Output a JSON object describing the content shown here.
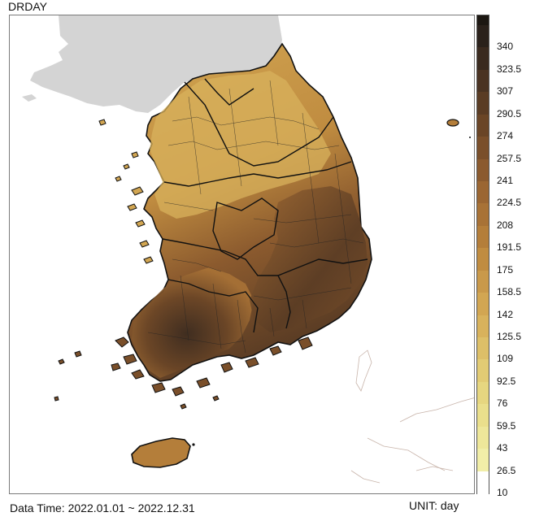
{
  "title": "DRDAY",
  "footer": {
    "data_time": "Data Time: 2022.01.01 ~ 2022.12.31",
    "unit": "UNIT: day"
  },
  "legend": {
    "labels": [
      "340",
      "323.5",
      "307",
      "290.5",
      "274",
      "257.5",
      "241",
      "224.5",
      "208",
      "191.5",
      "175",
      "158.5",
      "142",
      "125.5",
      "109",
      "92.5",
      "76",
      "59.5",
      "43",
      "26.5",
      "10"
    ],
    "colors": [
      "#2a211b",
      "#3a2a1f",
      "#4a3322",
      "#5a3c24",
      "#6a4526",
      "#7a4f2a",
      "#8b5a2e",
      "#9b6632",
      "#a87236",
      "#b47e3a",
      "#c08c40",
      "#c9994a",
      "#d2a652",
      "#d8b25c",
      "#ddbf68",
      "#e2cb74",
      "#e6d680",
      "#eadf8c",
      "#eee79a",
      "#f1eea8",
      "#ffffff"
    ]
  },
  "colors": {
    "land_dark": "#4a3322",
    "land_mid": "#8b5a2e",
    "land_light": "#d8b25c",
    "neighbor_land": "#d4d4d4",
    "border": "#111111"
  }
}
